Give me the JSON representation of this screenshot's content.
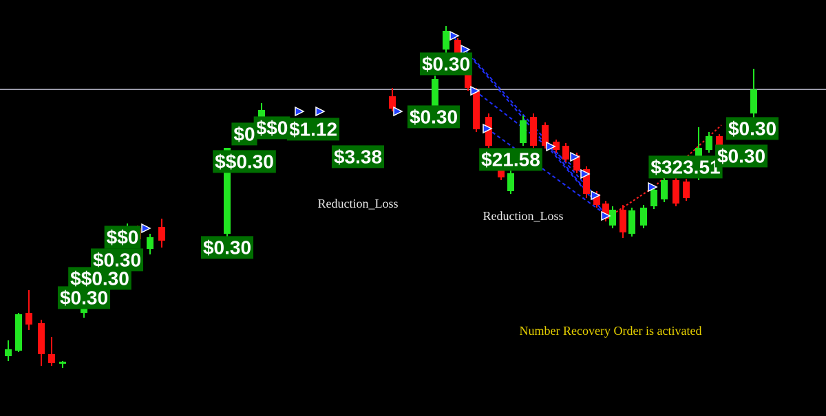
{
  "labels": [
    "$0.30",
    "$$0.30",
    "$0.30",
    "$1.12",
    "$0.30",
    "$21.58",
    "$323.51",
    "$0.30",
    "$0.30",
    "$0.30",
    "$$0.30",
    "$0.30",
    "$3.38",
    "$$0",
    "$$0",
    "$0"
  ],
  "annotations": [
    "Reduction_Loss",
    "Reduction_Loss",
    "Number Recovery Order is activated"
  ]
}
